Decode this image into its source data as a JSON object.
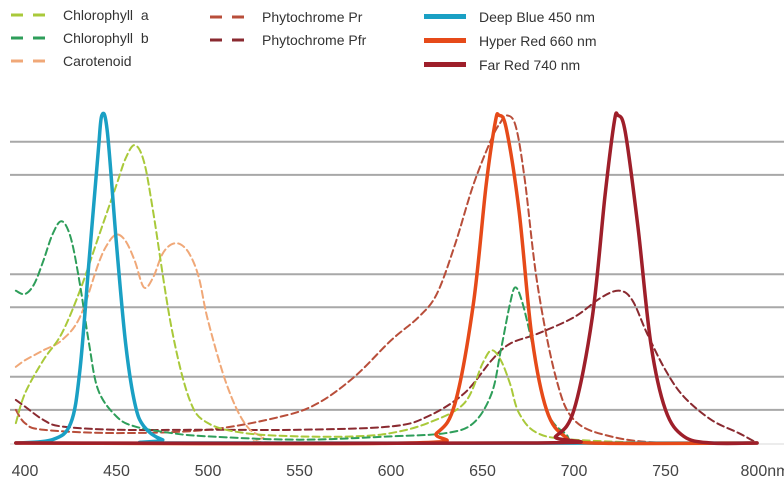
{
  "chart_data": {
    "type": "line",
    "title": "",
    "xlabel": "",
    "ylabel": "",
    "xlim": [
      395,
      805
    ],
    "ylim": [
      0,
      1
    ],
    "x_ticks": [
      {
        "value": 400,
        "label": "400"
      },
      {
        "value": 450,
        "label": "450"
      },
      {
        "value": 500,
        "label": "500"
      },
      {
        "value": 550,
        "label": "550"
      },
      {
        "value": 600,
        "label": "600"
      },
      {
        "value": 650,
        "label": "650"
      },
      {
        "value": 700,
        "label": "700"
      },
      {
        "value": 750,
        "label": "750"
      },
      {
        "value": 800,
        "label": "800nm"
      }
    ],
    "grid": {
      "horizontal": true,
      "levels": [
        0.1,
        0.2,
        0.41,
        0.51,
        0.81,
        0.91
      ]
    },
    "legend_position": "top",
    "series": [
      {
        "name": "Chlorophyll  a",
        "style": "dashed",
        "color": "#a9c93a",
        "points": [
          [
            395,
            0.06
          ],
          [
            400,
            0.15
          ],
          [
            410,
            0.25
          ],
          [
            420,
            0.33
          ],
          [
            430,
            0.46
          ],
          [
            440,
            0.62
          ],
          [
            450,
            0.78
          ],
          [
            455,
            0.86
          ],
          [
            460,
            0.9
          ],
          [
            465,
            0.85
          ],
          [
            470,
            0.7
          ],
          [
            480,
            0.35
          ],
          [
            490,
            0.13
          ],
          [
            500,
            0.06
          ],
          [
            520,
            0.03
          ],
          [
            550,
            0.02
          ],
          [
            580,
            0.02
          ],
          [
            600,
            0.03
          ],
          [
            620,
            0.06
          ],
          [
            640,
            0.12
          ],
          [
            650,
            0.24
          ],
          [
            655,
            0.28
          ],
          [
            660,
            0.25
          ],
          [
            665,
            0.18
          ],
          [
            670,
            0.09
          ],
          [
            680,
            0.03
          ],
          [
            700,
            0.01
          ],
          [
            750,
            0.0
          ],
          [
            800,
            0.0
          ]
        ]
      },
      {
        "name": "Chlorophyll  b",
        "style": "dashed",
        "color": "#2e9e5a",
        "points": [
          [
            395,
            0.46
          ],
          [
            400,
            0.45
          ],
          [
            405,
            0.48
          ],
          [
            410,
            0.55
          ],
          [
            415,
            0.63
          ],
          [
            420,
            0.67
          ],
          [
            425,
            0.62
          ],
          [
            430,
            0.48
          ],
          [
            435,
            0.3
          ],
          [
            440,
            0.16
          ],
          [
            450,
            0.08
          ],
          [
            460,
            0.05
          ],
          [
            480,
            0.03
          ],
          [
            500,
            0.02
          ],
          [
            550,
            0.01
          ],
          [
            600,
            0.02
          ],
          [
            630,
            0.03
          ],
          [
            645,
            0.06
          ],
          [
            655,
            0.15
          ],
          [
            660,
            0.28
          ],
          [
            665,
            0.42
          ],
          [
            668,
            0.47
          ],
          [
            672,
            0.42
          ],
          [
            678,
            0.28
          ],
          [
            685,
            0.1
          ],
          [
            695,
            0.03
          ],
          [
            710,
            0.0
          ],
          [
            800,
            0.0
          ]
        ]
      },
      {
        "name": "Carotenoid",
        "style": "dashed",
        "color": "#f0a878",
        "points": [
          [
            395,
            0.23
          ],
          [
            400,
            0.25
          ],
          [
            410,
            0.28
          ],
          [
            420,
            0.31
          ],
          [
            430,
            0.38
          ],
          [
            440,
            0.54
          ],
          [
            445,
            0.6
          ],
          [
            450,
            0.63
          ],
          [
            455,
            0.61
          ],
          [
            460,
            0.55
          ],
          [
            465,
            0.47
          ],
          [
            470,
            0.5
          ],
          [
            475,
            0.57
          ],
          [
            480,
            0.6
          ],
          [
            485,
            0.6
          ],
          [
            490,
            0.57
          ],
          [
            495,
            0.5
          ],
          [
            500,
            0.37
          ],
          [
            510,
            0.18
          ],
          [
            520,
            0.06
          ],
          [
            530,
            0.02
          ],
          [
            550,
            0.0
          ],
          [
            800,
            0.0
          ]
        ]
      },
      {
        "name": "Phytochrome Pr",
        "style": "dashed",
        "color": "#b84e3a",
        "points": [
          [
            395,
            0.1
          ],
          [
            400,
            0.06
          ],
          [
            410,
            0.04
          ],
          [
            450,
            0.03
          ],
          [
            500,
            0.04
          ],
          [
            540,
            0.08
          ],
          [
            560,
            0.12
          ],
          [
            580,
            0.2
          ],
          [
            600,
            0.31
          ],
          [
            615,
            0.38
          ],
          [
            625,
            0.45
          ],
          [
            635,
            0.6
          ],
          [
            645,
            0.78
          ],
          [
            655,
            0.92
          ],
          [
            660,
            0.97
          ],
          [
            663,
            0.99
          ],
          [
            668,
            0.96
          ],
          [
            673,
            0.8
          ],
          [
            680,
            0.48
          ],
          [
            690,
            0.2
          ],
          [
            700,
            0.07
          ],
          [
            720,
            0.02
          ],
          [
            750,
            0.0
          ],
          [
            800,
            0.0
          ]
        ]
      },
      {
        "name": "Phytochrome Pfr",
        "style": "dashed",
        "color": "#8a2a30",
        "points": [
          [
            395,
            0.13
          ],
          [
            400,
            0.11
          ],
          [
            410,
            0.07
          ],
          [
            420,
            0.05
          ],
          [
            450,
            0.04
          ],
          [
            500,
            0.04
          ],
          [
            550,
            0.04
          ],
          [
            600,
            0.05
          ],
          [
            620,
            0.08
          ],
          [
            640,
            0.15
          ],
          [
            655,
            0.25
          ],
          [
            665,
            0.3
          ],
          [
            680,
            0.33
          ],
          [
            700,
            0.38
          ],
          [
            715,
            0.44
          ],
          [
            725,
            0.46
          ],
          [
            732,
            0.43
          ],
          [
            740,
            0.33
          ],
          [
            750,
            0.22
          ],
          [
            760,
            0.14
          ],
          [
            775,
            0.07
          ],
          [
            790,
            0.03
          ],
          [
            800,
            0.0
          ]
        ]
      },
      {
        "name": "Deep Blue 450 nm",
        "style": "solid",
        "color": "#1aa0c4",
        "points": [
          [
            395,
            0.0
          ],
          [
            415,
            0.01
          ],
          [
            425,
            0.06
          ],
          [
            430,
            0.22
          ],
          [
            435,
            0.55
          ],
          [
            440,
            0.88
          ],
          [
            442,
            0.99
          ],
          [
            445,
            0.94
          ],
          [
            450,
            0.6
          ],
          [
            455,
            0.3
          ],
          [
            460,
            0.12
          ],
          [
            465,
            0.05
          ],
          [
            475,
            0.01
          ],
          [
            490,
            0.0
          ],
          [
            800,
            0.0
          ]
        ]
      },
      {
        "name": "Hyper Red 660 nm",
        "style": "solid",
        "color": "#e64a19",
        "points": [
          [
            395,
            0.0
          ],
          [
            610,
            0.0
          ],
          [
            625,
            0.03
          ],
          [
            635,
            0.12
          ],
          [
            645,
            0.42
          ],
          [
            652,
            0.78
          ],
          [
            657,
            0.97
          ],
          [
            659,
            0.99
          ],
          [
            663,
            0.95
          ],
          [
            670,
            0.7
          ],
          [
            677,
            0.32
          ],
          [
            685,
            0.1
          ],
          [
            695,
            0.02
          ],
          [
            710,
            0.0
          ],
          [
            800,
            0.0
          ]
        ]
      },
      {
        "name": "Far Red 740 nm",
        "style": "solid",
        "color": "#9e1f2a",
        "points": [
          [
            395,
            0.0
          ],
          [
            680,
            0.0
          ],
          [
            690,
            0.02
          ],
          [
            700,
            0.1
          ],
          [
            710,
            0.38
          ],
          [
            717,
            0.75
          ],
          [
            722,
            0.97
          ],
          [
            724,
            0.99
          ],
          [
            728,
            0.94
          ],
          [
            735,
            0.65
          ],
          [
            742,
            0.3
          ],
          [
            750,
            0.1
          ],
          [
            760,
            0.02
          ],
          [
            775,
            0.0
          ],
          [
            800,
            0.0
          ]
        ]
      }
    ]
  }
}
